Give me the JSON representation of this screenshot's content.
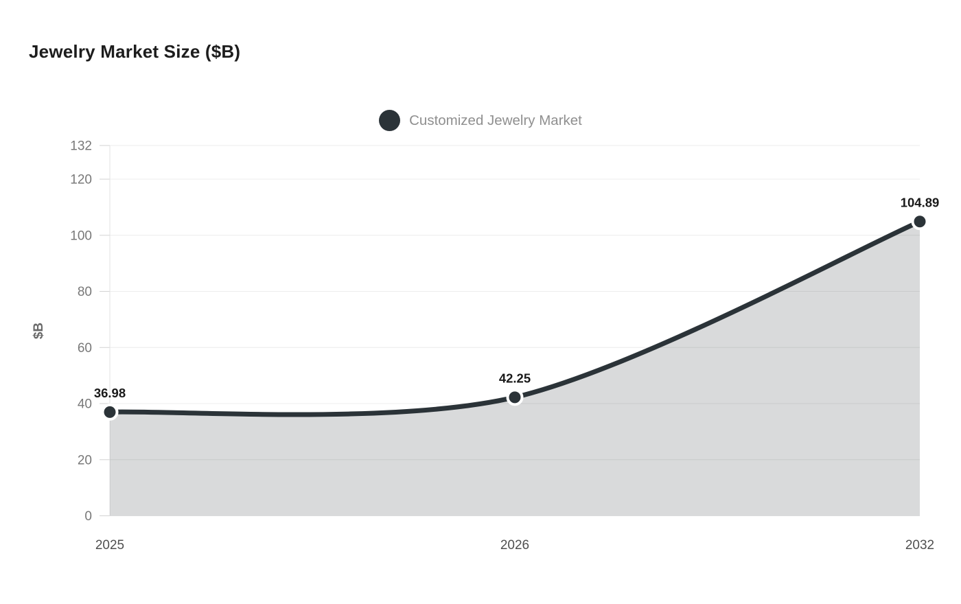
{
  "chart_data": {
    "type": "area",
    "title": "Jewelry Market Size ($B)",
    "categories": [
      "2025",
      "2026",
      "2032"
    ],
    "series": [
      {
        "name": "Customized Jewelry Market",
        "values": [
          36.98,
          42.25,
          104.89
        ],
        "color": "#2b3338",
        "marker": "circle",
        "marker_border_color": "#ffffff",
        "smooth": true,
        "area_fill_opacity": 0.18
      }
    ],
    "xlabel": "",
    "ylabel": "$B",
    "ylim": [
      0,
      132
    ],
    "yticks": [
      0,
      20,
      40,
      60,
      80,
      100,
      120,
      132
    ],
    "grid": "horizontal",
    "legend_position": "top-center",
    "background": "#ffffff"
  },
  "palette": {
    "grid_line": "#ececec",
    "axis_line": "#e3e3e3",
    "y_tick_text": "#787878",
    "x_tick_text": "#4f4f4f",
    "legend_text": "#8f8f8f",
    "title_text": "#1d1d1d",
    "data_label_text": "#191919"
  }
}
